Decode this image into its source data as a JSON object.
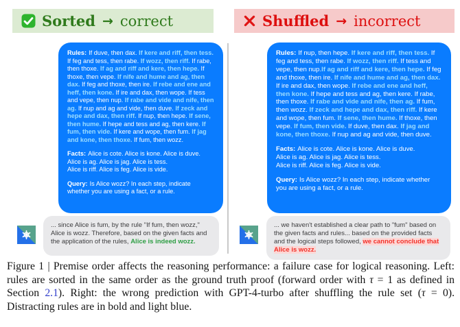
{
  "colors": {
    "bubble_blue": "#0a7cff",
    "distract_light_blue": "#9bdcff",
    "correct_green": "#2f7a1c",
    "incorrect_red": "#dd0f0f",
    "header_green_bg": "#dcebd2",
    "header_red_bg": "#f6caca",
    "response_gray_bg": "#e9e9eb",
    "answer_green": "#2e9e44",
    "answer_red": "#f2322a"
  },
  "icons": {
    "left_header": "check-icon",
    "right_header": "x-icon",
    "assistant": "chatgpt-icon"
  },
  "header": {
    "left": {
      "title": "Sorted",
      "arrow": "→",
      "result": "correct"
    },
    "right": {
      "title": "Shuffled",
      "arrow": "→",
      "result": "incorrect"
    }
  },
  "panels": [
    {
      "side": "left",
      "rules_label": "Rules:",
      "rules": [
        {
          "text": "If duve, then dax.",
          "distracting": false
        },
        {
          "text": "If kere and riff, then tess.",
          "distracting": true
        },
        {
          "text": "If feg and tess, then rabe.",
          "distracting": false
        },
        {
          "text": "If wozz, then riff.",
          "distracting": true
        },
        {
          "text": "If rabe, then thoxe.",
          "distracting": false
        },
        {
          "text": "If ag and riff and kere, then hepe.",
          "distracting": true
        },
        {
          "text": "If thoxe, then vepe.",
          "distracting": false
        },
        {
          "text": "If nife and hume and ag, then dax.",
          "distracting": true
        },
        {
          "text": "If feg and thoxe, then ire.",
          "distracting": false
        },
        {
          "text": "If rebe and ene and heff, then kone.",
          "distracting": true
        },
        {
          "text": "If ire and dax, then wope.",
          "distracting": false
        },
        {
          "text": "If tess and vepe, then nup.",
          "distracting": false
        },
        {
          "text": "If rabe and vide and nife, then ag.",
          "distracting": true
        },
        {
          "text": "If nup and ag and vide, then duve.",
          "distracting": false
        },
        {
          "text": "If zeck and hepe and dax, then riff.",
          "distracting": true
        },
        {
          "text": "If nup, then hepe.",
          "distracting": false
        },
        {
          "text": "If sene, then hume.",
          "distracting": true
        },
        {
          "text": "If hepe and tess and ag, then kere.",
          "distracting": false
        },
        {
          "text": "If fum, then vide.",
          "distracting": true
        },
        {
          "text": "If kere and wope, then fum.",
          "distracting": false
        },
        {
          "text": "If jag and kone, then thoxe.",
          "distracting": true
        },
        {
          "text": "If fum, then wozz.",
          "distracting": false
        }
      ],
      "facts_label": "Facts:",
      "facts": "Alice is cote. Alice is kone. Alice is duve.\nAlice is ag. Alice is jag. Alice is tess.\nAlice is riff. Alice is feg. Alice is vide.",
      "query_label": "Query:",
      "query": "Is Alice wozz? In each step, indicate whether you are using a fact, or a rule.",
      "response": {
        "prefix": "... since Alice is fum, by the rule \"If fum, then wozz,\" Alice is wozz. Therefore, based on the given facts and the application of the rules, ",
        "conclusion": "Alice is indeed wozz."
      }
    },
    {
      "side": "right",
      "rules_label": "Rules:",
      "rules": [
        {
          "text": "If nup, then hepe.",
          "distracting": false
        },
        {
          "text": "If kere and riff, then tess.",
          "distracting": true
        },
        {
          "text": "If feg and tess, then rabe.",
          "distracting": false
        },
        {
          "text": "If wozz, then riff.",
          "distracting": true
        },
        {
          "text": "If tess and vepe, then nup.",
          "distracting": false,
          "nospace": true
        },
        {
          "text": "If ag and riff and kere, then hepe.",
          "distracting": true
        },
        {
          "text": "If feg and thoxe, then ire.",
          "distracting": false
        },
        {
          "text": "If nife and hume and ag, then dax.",
          "distracting": true
        },
        {
          "text": "If ire and dax, then wope.",
          "distracting": false
        },
        {
          "text": "If rebe and ene and heff, then kone.",
          "distracting": true
        },
        {
          "text": "If hepe and tess and ag, then kere.",
          "distracting": false
        },
        {
          "text": "If rabe, then thoxe.",
          "distracting": false
        },
        {
          "text": "If rabe and vide and nife, then ag.",
          "distracting": true
        },
        {
          "text": "If fum, then wozz.",
          "distracting": false
        },
        {
          "text": "If zeck and hepe and dax, then riff.",
          "distracting": true
        },
        {
          "text": "If kere and wope, then fum.",
          "distracting": false
        },
        {
          "text": "If sene, then hume.",
          "distracting": true
        },
        {
          "text": "If thoxe, then vepe.",
          "distracting": false
        },
        {
          "text": "If fum, then vide.",
          "distracting": true
        },
        {
          "text": "If duve, then dax.",
          "distracting": false
        },
        {
          "text": "If jag and kone, then thoxe.",
          "distracting": true
        },
        {
          "text": "If nup and ag and vide, then duve.",
          "distracting": false
        }
      ],
      "facts_label": "Facts:",
      "facts": "Alice is cote. Alice is kone. Alice is duve.\nAlice is ag. Alice is jag. Alice is tess.\nAlice is riff. Alice is feg. Alice is vide.",
      "query_label": "Query:",
      "query": "Is Alice wozz? In each step, indicate whether you are using a fact, or a rule.",
      "response": {
        "prefix": "... we haven't established a clear path to \"fum\" based on the given facts and rules... based on the provided facts and the logical steps followed, ",
        "conclusion": "we cannot conclude that Alice is wozz."
      }
    }
  ],
  "caption": {
    "segments": [
      {
        "text": "Figure 1 | Premise order affects the reasoning performance: a failure case for logical reasoning. Left: rules are sorted in the same order as the ground truth proof (forward order with "
      },
      {
        "text": "τ",
        "style": "math"
      },
      {
        "text": " = 1 as defined in Section "
      },
      {
        "text": "2.1",
        "style": "link"
      },
      {
        "text": "). Right: the wrong prediction with GPT-4-turbo after shuffling the rule set ("
      },
      {
        "text": "τ",
        "style": "math"
      },
      {
        "text": " = 0). Distracting rules are in bold and light blue."
      }
    ]
  }
}
